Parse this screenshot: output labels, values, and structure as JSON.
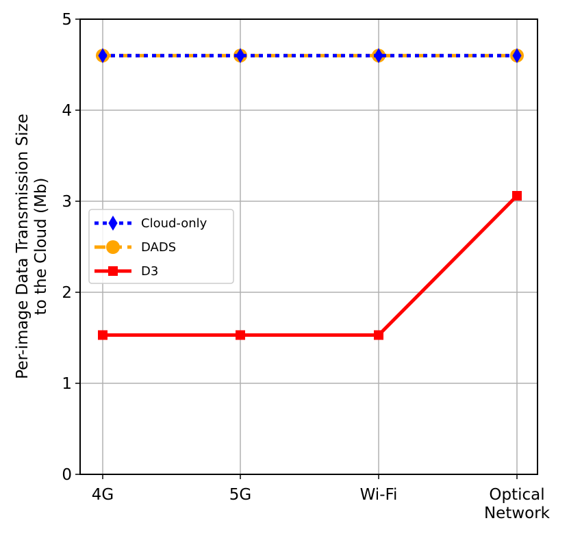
{
  "chart_data": {
    "type": "line",
    "categories": [
      [
        "4G"
      ],
      [
        "5G"
      ],
      [
        "Wi-Fi"
      ],
      [
        "Optical",
        "Network"
      ]
    ],
    "ylabel": [
      "Per-image Data Transmission Size",
      "to the Cloud (Mb)"
    ],
    "xlabel": "",
    "ylim": [
      0,
      5
    ],
    "yticks": [
      "0",
      "1",
      "2",
      "3",
      "4",
      "5"
    ],
    "grid": true,
    "legend_position": "center-left",
    "series": [
      {
        "name": "Cloud-only",
        "values": [
          4.6,
          4.6,
          4.6,
          4.6
        ],
        "color": "#0000ff",
        "marker": "diamond",
        "line_style": "dotted"
      },
      {
        "name": "DADS",
        "values": [
          4.6,
          4.6,
          4.6,
          4.6
        ],
        "color": "#ffa500",
        "marker": "circle",
        "line_style": "dashed"
      },
      {
        "name": "D3",
        "values": [
          1.53,
          1.53,
          1.53,
          3.06
        ],
        "color": "#ff0000",
        "marker": "square",
        "line_style": "solid"
      }
    ]
  }
}
